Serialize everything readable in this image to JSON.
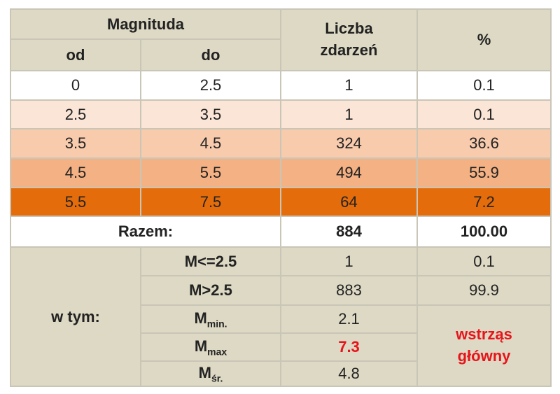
{
  "header": {
    "magnitude": "Magnituda",
    "from": "od",
    "to": "do",
    "count": "Liczba zdarzeń",
    "percent": "%"
  },
  "rows": [
    [
      "0",
      "2.5",
      "1",
      "0.1"
    ],
    [
      "2.5",
      "3.5",
      "1",
      "0.1"
    ],
    [
      "3.5",
      "4.5",
      "324",
      "36.6"
    ],
    [
      "4.5",
      "5.5",
      "494",
      "55.9"
    ],
    [
      "5.5",
      "7.5",
      "64",
      "7.2"
    ]
  ],
  "total": {
    "label": "Razem:",
    "count": "884",
    "percent": "100.00"
  },
  "breakdown": {
    "label": "w tym:",
    "rows": [
      {
        "label": "M<=2.5",
        "count": "1",
        "percent": "0.1"
      },
      {
        "label": "M>2.5",
        "count": "883",
        "percent": "99.9"
      },
      {
        "symbol": "M",
        "subscript": "min.",
        "count": "2.1"
      },
      {
        "symbol": "M",
        "subscript": "max",
        "count": "7.3"
      },
      {
        "symbol": "M",
        "subscript": "śr.",
        "count": "4.8"
      }
    ],
    "note": "wstrząs główny"
  }
}
